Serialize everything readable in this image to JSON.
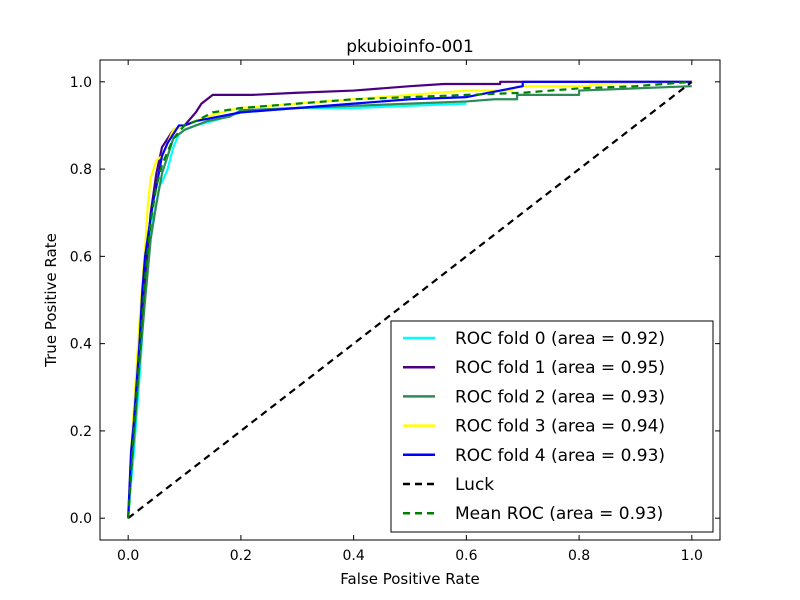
{
  "chart_data": {
    "type": "line",
    "title": "pkubioinfo-001",
    "xlabel": "False Positive Rate",
    "ylabel": "True Positive Rate",
    "xlim": [
      -0.05,
      1.05
    ],
    "ylim": [
      -0.05,
      1.05
    ],
    "xticks": [
      0.0,
      0.2,
      0.4,
      0.6,
      0.8,
      1.0
    ],
    "yticks": [
      0.0,
      0.2,
      0.4,
      0.6,
      0.8,
      1.0
    ],
    "xtick_labels": [
      "0.0",
      "0.2",
      "0.4",
      "0.6",
      "0.8",
      "1.0"
    ],
    "ytick_labels": [
      "0.0",
      "0.2",
      "0.4",
      "0.6",
      "0.8",
      "1.0"
    ],
    "grid": false,
    "legend_position": "lower-right",
    "series": [
      {
        "name": "ROC fold 0 (area = 0.92)",
        "color": "#00ffff",
        "style": "solid",
        "x": [
          0,
          0.005,
          0.01,
          0.02,
          0.03,
          0.04,
          0.05,
          0.055,
          0.06,
          0.07,
          0.08,
          0.09,
          0.1,
          0.12,
          0.15,
          0.2,
          0.3,
          0.4,
          0.5,
          0.6
        ],
        "y": [
          0,
          0.08,
          0.15,
          0.32,
          0.52,
          0.66,
          0.72,
          0.76,
          0.77,
          0.8,
          0.85,
          0.88,
          0.89,
          0.9,
          0.91,
          0.93,
          0.94,
          0.94,
          0.945,
          0.95
        ]
      },
      {
        "name": "ROC fold 1 (area = 0.95)",
        "color": "#4b0082",
        "style": "solid",
        "x": [
          0,
          0.005,
          0.01,
          0.02,
          0.03,
          0.04,
          0.05,
          0.06,
          0.07,
          0.08,
          0.1,
          0.12,
          0.13,
          0.14,
          0.15,
          0.2,
          0.22,
          0.3,
          0.4,
          0.5,
          0.56,
          0.66,
          0.66,
          1.0
        ],
        "y": [
          0,
          0.13,
          0.2,
          0.38,
          0.55,
          0.7,
          0.79,
          0.85,
          0.87,
          0.89,
          0.9,
          0.93,
          0.95,
          0.96,
          0.97,
          0.97,
          0.97,
          0.975,
          0.98,
          0.99,
          0.995,
          0.995,
          1.0,
          1.0
        ]
      },
      {
        "name": "ROC fold 2 (area = 0.93)",
        "color": "#2e8b57",
        "style": "solid",
        "x": [
          0,
          0.005,
          0.01,
          0.02,
          0.03,
          0.04,
          0.05,
          0.06,
          0.07,
          0.08,
          0.1,
          0.14,
          0.18,
          0.2,
          0.3,
          0.4,
          0.5,
          0.6,
          0.65,
          0.69,
          0.69,
          0.8,
          0.8,
          1.0
        ],
        "y": [
          0,
          0.1,
          0.18,
          0.35,
          0.5,
          0.64,
          0.72,
          0.79,
          0.83,
          0.87,
          0.89,
          0.91,
          0.92,
          0.935,
          0.94,
          0.945,
          0.95,
          0.955,
          0.96,
          0.96,
          0.97,
          0.97,
          0.98,
          0.99
        ]
      },
      {
        "name": "ROC fold 3 (area = 0.94)",
        "color": "#ffff00",
        "style": "solid",
        "x": [
          0,
          0.005,
          0.01,
          0.02,
          0.03,
          0.035,
          0.04,
          0.05,
          0.06,
          0.07,
          0.08,
          0.1,
          0.14,
          0.18,
          0.2,
          0.3,
          0.4,
          0.5,
          0.6,
          0.68,
          0.69,
          0.82,
          0.82,
          1.0
        ],
        "y": [
          0,
          0.15,
          0.25,
          0.45,
          0.62,
          0.72,
          0.78,
          0.82,
          0.83,
          0.86,
          0.89,
          0.9,
          0.92,
          0.935,
          0.94,
          0.95,
          0.96,
          0.97,
          0.98,
          0.98,
          0.99,
          0.99,
          0.995,
          1.0
        ]
      },
      {
        "name": "ROC fold 4 (area = 0.93)",
        "color": "#0000ff",
        "style": "solid",
        "x": [
          0,
          0.005,
          0.01,
          0.02,
          0.025,
          0.03,
          0.04,
          0.045,
          0.05,
          0.06,
          0.07,
          0.08,
          0.09,
          0.1,
          0.12,
          0.16,
          0.2,
          0.3,
          0.4,
          0.5,
          0.6,
          0.7,
          0.7,
          1.0
        ],
        "y": [
          0,
          0.15,
          0.22,
          0.4,
          0.52,
          0.6,
          0.69,
          0.73,
          0.76,
          0.83,
          0.86,
          0.88,
          0.9,
          0.9,
          0.91,
          0.92,
          0.93,
          0.94,
          0.95,
          0.96,
          0.965,
          0.99,
          1.0,
          1.0
        ]
      },
      {
        "name": "Luck",
        "color": "#000000",
        "style": "dashed",
        "x": [
          0,
          1
        ],
        "y": [
          0,
          1
        ]
      },
      {
        "name": "Mean ROC (area = 0.93)",
        "color": "#008000",
        "style": "dashed",
        "x": [
          0,
          0.01,
          0.02,
          0.03,
          0.04,
          0.05,
          0.06,
          0.07,
          0.08,
          0.1,
          0.12,
          0.15,
          0.2,
          0.3,
          0.4,
          0.5,
          0.6,
          0.7,
          0.8,
          0.9,
          1.0
        ],
        "y": [
          0,
          0.2,
          0.37,
          0.55,
          0.68,
          0.76,
          0.81,
          0.84,
          0.87,
          0.9,
          0.91,
          0.93,
          0.94,
          0.95,
          0.96,
          0.965,
          0.97,
          0.975,
          0.985,
          0.99,
          1.0
        ]
      }
    ]
  }
}
